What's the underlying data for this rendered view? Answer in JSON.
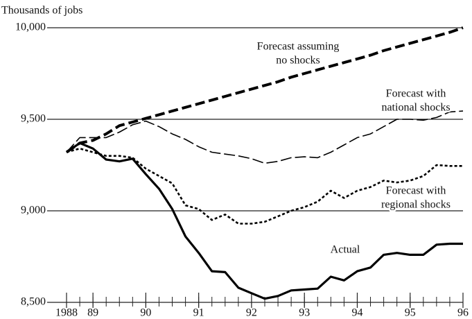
{
  "chart_data": {
    "type": "line",
    "y_label": "Thousands of jobs",
    "x": [
      1988.5,
      1988.75,
      1989,
      1989.25,
      1989.5,
      1989.75,
      1990,
      1990.25,
      1990.5,
      1990.75,
      1991,
      1991.25,
      1991.5,
      1991.75,
      1992,
      1992.25,
      1992.5,
      1992.75,
      1993,
      1993.25,
      1993.5,
      1993.75,
      1994,
      1994.25,
      1994.5,
      1994.75,
      1995,
      1995.25,
      1995.5,
      1995.75,
      1996
    ],
    "xlim": [
      1988.5,
      1996
    ],
    "xticks": [
      {
        "value": 1988.5,
        "label": "1988"
      },
      {
        "value": 1989,
        "label": "89"
      },
      {
        "value": 1990,
        "label": "90"
      },
      {
        "value": 1991,
        "label": "91"
      },
      {
        "value": 1992,
        "label": "92"
      },
      {
        "value": 1993,
        "label": "93"
      },
      {
        "value": 1994,
        "label": "94"
      },
      {
        "value": 1995,
        "label": "95"
      },
      {
        "value": 1996,
        "label": "96"
      }
    ],
    "ylim": [
      8500,
      10000
    ],
    "yticks": [
      {
        "value": 8500,
        "label": "8,500"
      },
      {
        "value": 9000,
        "label": "9,000"
      },
      {
        "value": 9500,
        "label": "9,500"
      },
      {
        "value": 10000,
        "label": "10,000"
      }
    ],
    "grid": true,
    "series": [
      {
        "name": "Forecast assuming no shocks",
        "label_lines": [
          "Forecast assuming",
          "no shocks"
        ],
        "color": "#000000",
        "style": "heavy-dash",
        "values": [
          9320,
          9370,
          9385,
          9420,
          9465,
          9485,
          9505,
          9525,
          9545,
          9565,
          9585,
          9605,
          9625,
          9645,
          9665,
          9685,
          9705,
          9730,
          9750,
          9770,
          9790,
          9810,
          9830,
          9850,
          9875,
          9895,
          9915,
          9935,
          9955,
          9975,
          10000
        ]
      },
      {
        "name": "Forecast with national shocks",
        "label_lines": [
          "Forecast with",
          "national shocks"
        ],
        "color": "#000000",
        "style": "long-dash",
        "values": [
          9320,
          9400,
          9400,
          9400,
          9430,
          9470,
          9490,
          9460,
          9420,
          9390,
          9350,
          9320,
          9310,
          9300,
          9285,
          9260,
          9270,
          9290,
          9295,
          9290,
          9320,
          9360,
          9400,
          9420,
          9460,
          9500,
          9500,
          9495,
          9510,
          9540,
          9545
        ]
      },
      {
        "name": "Forecast with regional shocks",
        "label_lines": [
          "Forecast with",
          "regional shocks"
        ],
        "color": "#000000",
        "style": "dotted",
        "values": [
          9320,
          9340,
          9320,
          9300,
          9300,
          9290,
          9230,
          9190,
          9150,
          9030,
          9010,
          8950,
          8980,
          8930,
          8930,
          8940,
          8970,
          9000,
          9020,
          9050,
          9110,
          9070,
          9110,
          9130,
          9165,
          9155,
          9165,
          9190,
          9250,
          9245,
          9245
        ]
      },
      {
        "name": "Actual",
        "label_lines": [
          "Actual"
        ],
        "color": "#000000",
        "style": "solid",
        "values": [
          9320,
          9370,
          9340,
          9280,
          9270,
          9285,
          9200,
          9120,
          9010,
          8860,
          8770,
          8670,
          8665,
          8580,
          8550,
          8520,
          8535,
          8565,
          8570,
          8575,
          8640,
          8620,
          8670,
          8690,
          8760,
          8770,
          8760,
          8760,
          8815,
          8820,
          8820
        ]
      }
    ]
  }
}
